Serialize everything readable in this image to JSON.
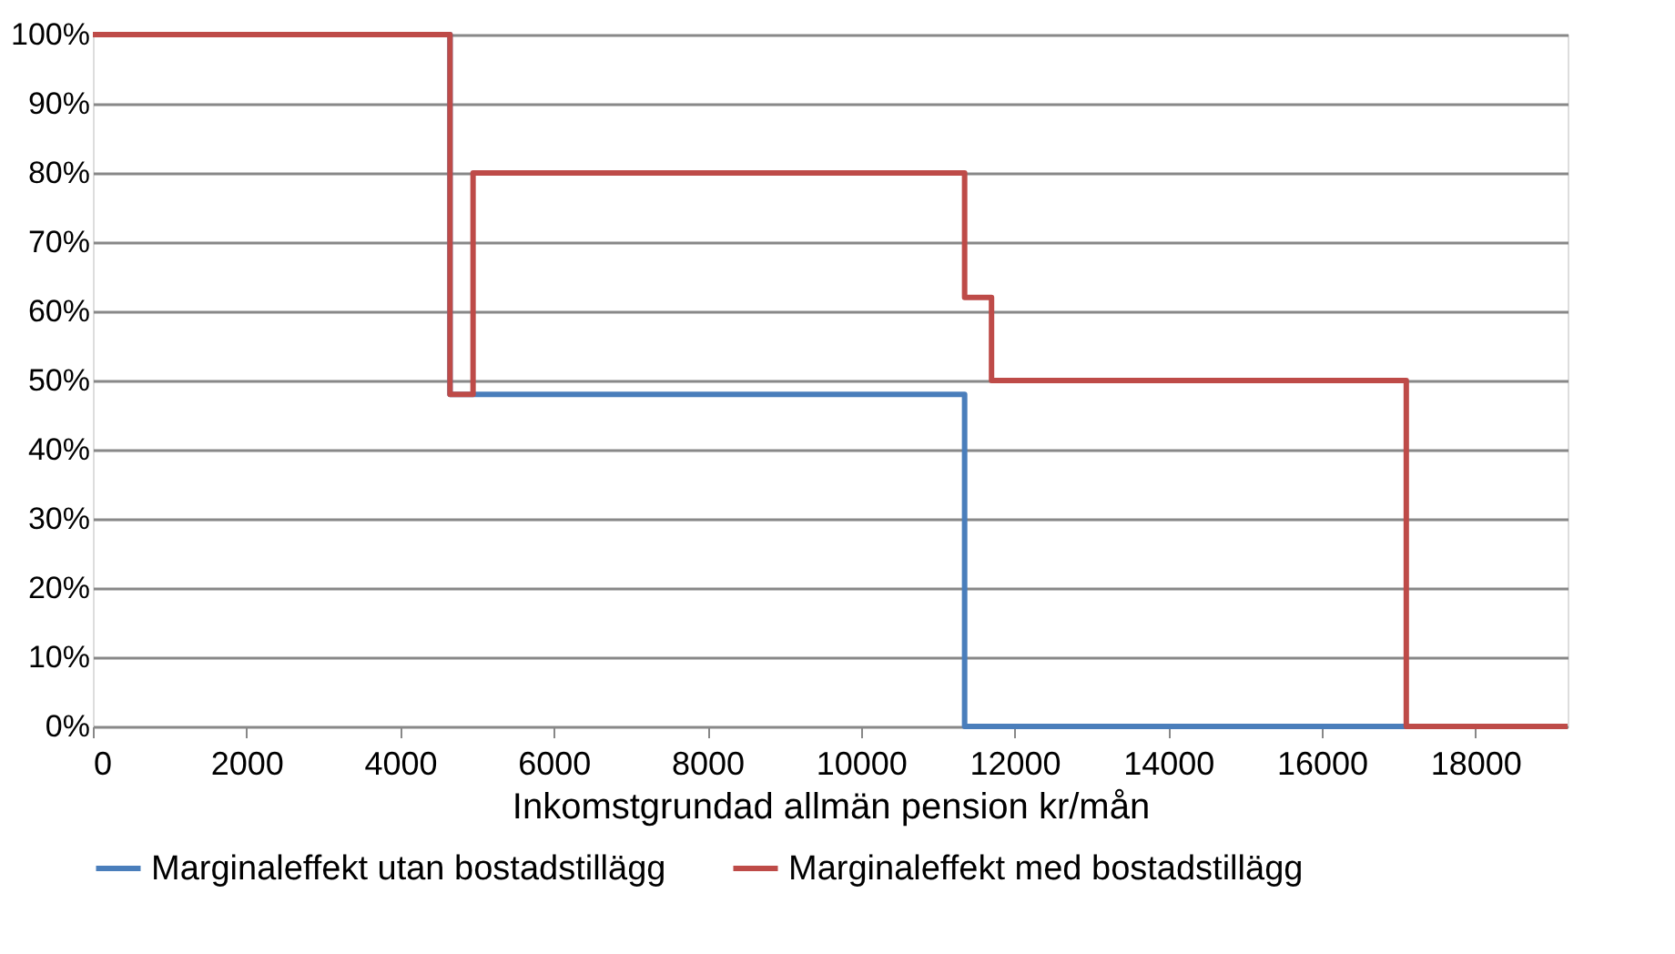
{
  "chart_data": {
    "type": "line",
    "xlabel": "Inkomstgrundad allmän pension kr/mån",
    "xlim": [
      0,
      19200
    ],
    "xticks": [
      0,
      2000,
      4000,
      6000,
      8000,
      10000,
      12000,
      14000,
      16000,
      18000
    ],
    "ylim": [
      0,
      100
    ],
    "yticks": [
      {
        "value": 0,
        "label": "0%"
      },
      {
        "value": 10,
        "label": "10%"
      },
      {
        "value": 20,
        "label": "20%"
      },
      {
        "value": 30,
        "label": "30%"
      },
      {
        "value": 40,
        "label": "40%"
      },
      {
        "value": 50,
        "label": "50%"
      },
      {
        "value": 60,
        "label": "60%"
      },
      {
        "value": 70,
        "label": "70%"
      },
      {
        "value": 80,
        "label": "80%"
      },
      {
        "value": 90,
        "label": "90%"
      },
      {
        "value": 100,
        "label": "100%"
      }
    ],
    "grid": "y",
    "legend": "bottom",
    "marker": "none",
    "line_style": "solid",
    "series": [
      {
        "name": "Marginaleffekt utan bostadstillägg",
        "color": "#4a7ebb",
        "x": [
          0,
          4650,
          4650,
          11350,
          11350,
          19200
        ],
        "values": [
          100,
          100,
          48,
          48,
          0,
          0
        ]
      },
      {
        "name": "Marginaleffekt med bostadstillägg",
        "color": "#be4b48",
        "x": [
          0,
          4650,
          4650,
          4950,
          4950,
          11350,
          11350,
          11700,
          11700,
          17100,
          17100,
          19200
        ],
        "values": [
          100,
          100,
          48,
          48,
          80,
          80,
          62,
          62,
          50,
          50,
          0,
          0
        ]
      }
    ]
  }
}
